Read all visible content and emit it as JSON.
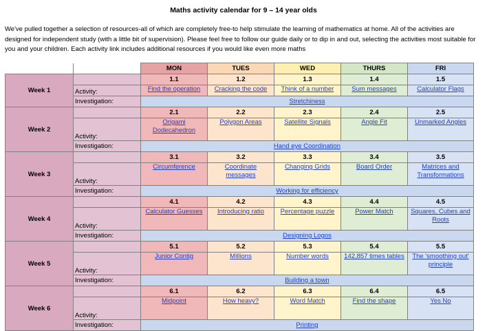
{
  "title": "Maths activity calendar for 9 – 14 year olds",
  "intro": "We've pulled together a selection of resources-all of which are completely free-to help stimulate the learning of mathematics at home. All of the activities are designed for independent study (with a little bit of supervision). Please feel free to follow our guide daily or to dip in and out, selecting the activities most suitable for you and your children. Each activity link includes additional resources if you would like even more maths",
  "labels": {
    "activity": "Activity:",
    "investigation": "Investigation:"
  },
  "days": [
    "MON",
    "TUES",
    "WED",
    "THURS",
    "FRI"
  ],
  "weeks": [
    {
      "label": "Week 1",
      "numbers": [
        "1.1",
        "1.2",
        "1.3",
        "1.4",
        "1.5"
      ],
      "activities": [
        "Find the operation",
        "Cracking the code",
        "Think of a number",
        "Sum messages",
        "Calculator Flags"
      ],
      "investigation": "Stretchiness"
    },
    {
      "label": "Week 2",
      "numbers": [
        "2.1",
        "2.2",
        "2.3",
        "2.4",
        "2.5"
      ],
      "activities": [
        "Origami Dodecahedron",
        "Polygon Areas",
        "Satellite Signals",
        "Angle Fit",
        "Unmarked Angles"
      ],
      "investigation": "Hand eye Coordination"
    },
    {
      "label": "Week 3",
      "numbers": [
        "3.1",
        "3.2",
        "3.3",
        "3.4",
        "3.5"
      ],
      "activities": [
        "Circumference",
        "Coordinate messages",
        "Changing Grids",
        "Board Order",
        "Matrices and Transformations"
      ],
      "investigation": "Working for efficiency"
    },
    {
      "label": "Week 4",
      "numbers": [
        "4.1",
        "4.2",
        "4.3",
        "4.4",
        "4.5"
      ],
      "activities": [
        "Calculator Guesses",
        "Introducing ratio",
        "Percentage puzzle",
        "Power Match",
        "Squares, Cubes and Roots"
      ],
      "investigation": "Designing Logos"
    },
    {
      "label": "Week 5",
      "numbers": [
        "5.1",
        "5.2",
        "5.3",
        "5.4",
        "5.5"
      ],
      "activities": [
        "Junior Contig",
        "Millions",
        "Number words",
        "142,857 times tables",
        "The 'smoothing out' principle"
      ],
      "investigation": "Building a town"
    },
    {
      "label": "Week 6",
      "numbers": [
        "6.1",
        "6.2",
        "6.3",
        "6.4",
        "6.5"
      ],
      "activities": [
        "Midpoint",
        "How heavy?",
        "Word Match",
        "Find the shape",
        "Yes No"
      ],
      "investigation": "Printing"
    }
  ]
}
